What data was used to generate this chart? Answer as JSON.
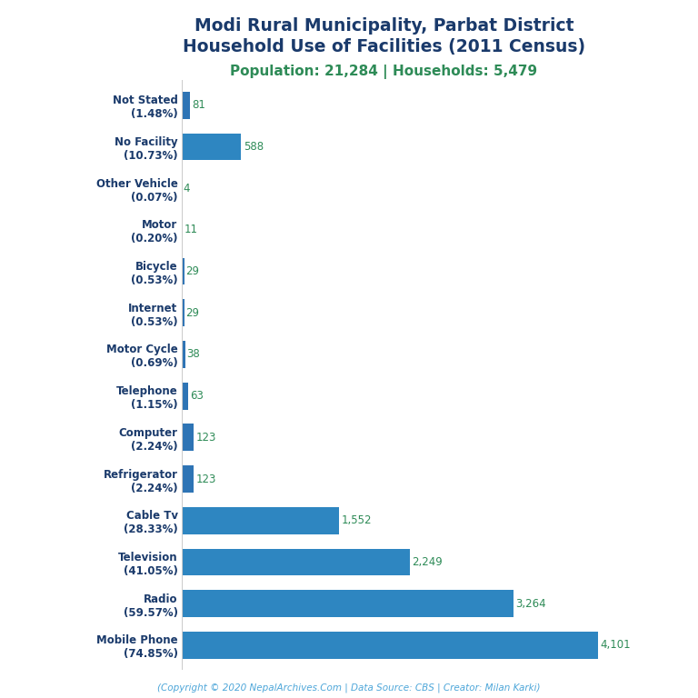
{
  "title_line1": "Modi Rural Municipality, Parbat District",
  "title_line2": "Household Use of Facilities (2011 Census)",
  "subtitle": "Population: 21,284 | Households: 5,479",
  "footer": "(Copyright © 2020 NepalArchives.Com | Data Source: CBS | Creator: Milan Karki)",
  "categories": [
    "Not Stated\n(1.48%)",
    "No Facility\n(10.73%)",
    "Other Vehicle\n(0.07%)",
    "Motor\n(0.20%)",
    "Bicycle\n(0.53%)",
    "Internet\n(0.53%)",
    "Motor Cycle\n(0.69%)",
    "Telephone\n(1.15%)",
    "Computer\n(2.24%)",
    "Refrigerator\n(2.24%)",
    "Cable Tv\n(28.33%)",
    "Television\n(41.05%)",
    "Radio\n(59.57%)",
    "Mobile Phone\n(74.85%)"
  ],
  "values": [
    81,
    588,
    4,
    11,
    29,
    29,
    38,
    63,
    123,
    123,
    1552,
    2249,
    3264,
    4101
  ],
  "value_labels": [
    "81",
    "588",
    "4",
    "11",
    "29",
    "29",
    "38",
    "63",
    "123",
    "123",
    "1,552",
    "2,249",
    "3,264",
    "4,101"
  ],
  "bar_colors": [
    "#2e74b5",
    "#2e86c1",
    "#2e74b5",
    "#2e74b5",
    "#2e74b5",
    "#2e74b5",
    "#2e74b5",
    "#2e74b5",
    "#2e74b5",
    "#2e74b5",
    "#2e86c1",
    "#2e86c1",
    "#2e86c1",
    "#2e86c1"
  ],
  "title_color": "#1a3a6b",
  "subtitle_color": "#2e8b57",
  "label_color": "#1a3a6b",
  "value_color": "#2e8b57",
  "footer_color": "#4da6d9",
  "background_color": "#ffffff",
  "xlim": [
    0,
    4600
  ]
}
